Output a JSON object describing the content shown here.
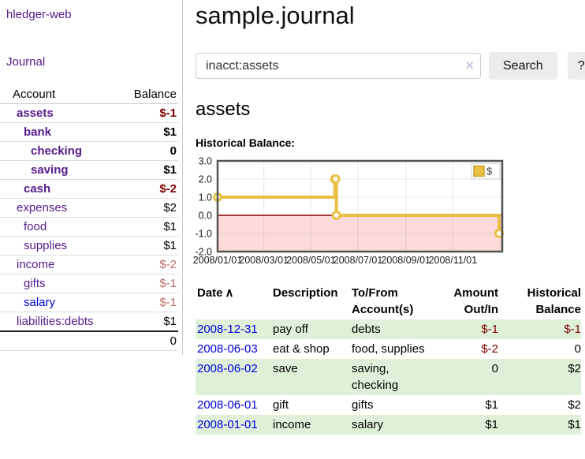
{
  "app": {
    "brand": "hledger-web"
  },
  "sidebar": {
    "journal_link": "Journal",
    "accounts_table": {
      "headers": [
        "Account",
        "Balance"
      ],
      "rows": [
        {
          "name": "assets",
          "balance": "$-1",
          "level": 1,
          "bold": true,
          "name_color": "purple",
          "balance_color": "darkred"
        },
        {
          "name": "bank",
          "balance": "$1",
          "level": 2,
          "bold": true,
          "name_color": "purple",
          "balance_color": "black"
        },
        {
          "name": "checking",
          "balance": "0",
          "level": 3,
          "bold": true,
          "name_color": "purple",
          "balance_color": "black"
        },
        {
          "name": "saving",
          "balance": "$1",
          "level": 3,
          "bold": true,
          "name_color": "purple",
          "balance_color": "black"
        },
        {
          "name": "cash",
          "balance": "$-2",
          "level": 2,
          "bold": true,
          "name_color": "purple",
          "balance_color": "darkred"
        },
        {
          "name": "expenses",
          "balance": "$2",
          "level": 1,
          "bold": false,
          "name_color": "purple",
          "balance_color": "black"
        },
        {
          "name": "food",
          "balance": "$1",
          "level": 2,
          "bold": false,
          "name_color": "purple",
          "balance_color": "black"
        },
        {
          "name": "supplies",
          "balance": "$1",
          "level": 2,
          "bold": false,
          "name_color": "purple",
          "balance_color": "black"
        },
        {
          "name": "income",
          "balance": "$-2",
          "level": 1,
          "bold": false,
          "name_color": "purple",
          "balance_color": "palered"
        },
        {
          "name": "gifts",
          "balance": "$-1",
          "level": 2,
          "bold": false,
          "name_color": "purple",
          "balance_color": "palered"
        },
        {
          "name": "salary",
          "balance": "$-1",
          "level": 2,
          "bold": false,
          "name_color": "blue",
          "balance_color": "palered"
        },
        {
          "name": "liabilities:debts",
          "balance": "$1",
          "level": 1,
          "bold": false,
          "name_color": "purple",
          "balance_color": "black"
        }
      ],
      "total": "0"
    }
  },
  "header": {
    "title": "sample.journal"
  },
  "search": {
    "value": "inacct:assets",
    "clear_icon": "×",
    "button_label": "Search",
    "help_label": "?"
  },
  "main": {
    "account_heading": "assets",
    "chart_label": "Historical Balance:"
  },
  "chart_data": {
    "type": "line",
    "step": true,
    "title": "Historical Balance",
    "series": [
      {
        "name": "$",
        "color": "#e9c044",
        "points": [
          {
            "date": "2008-01-01",
            "value": 1
          },
          {
            "date": "2008-06-01",
            "value": 2
          },
          {
            "date": "2008-06-02",
            "value": 2
          },
          {
            "date": "2008-06-03",
            "value": 0
          },
          {
            "date": "2008-12-31",
            "value": -1
          }
        ]
      }
    ],
    "x_ticks": [
      "2008/01/01",
      "2008/03/01",
      "2008/05/01",
      "2008/07/01",
      "2008/09/01",
      "2008/11/01"
    ],
    "y_ticks": [
      3.0,
      2.0,
      1.0,
      0.0,
      -1.0,
      -2.0
    ],
    "ylim": [
      -2,
      3
    ],
    "x_domain": [
      "2008-01-01",
      "2009-01-04"
    ],
    "negative_region_fill": "#fcdada",
    "zero_line_color": "#8b0000",
    "border_color": "#545454",
    "legend": {
      "label": "$",
      "position": "top-right"
    },
    "grid": true
  },
  "transactions": {
    "headers": [
      "Date",
      "Description",
      "To/From Account(s)",
      "Amount Out/In",
      "Historical Balance"
    ],
    "sort_icon": "∧",
    "rows": [
      {
        "date": "2008-12-31",
        "description": "pay off",
        "accounts": "debts",
        "amount": "$-1",
        "amount_negative": true,
        "balance": "$-1",
        "balance_negative": true,
        "shaded": true
      },
      {
        "date": "2008-06-03",
        "description": "eat & shop",
        "accounts": "food, supplies",
        "amount": "$-2",
        "amount_negative": true,
        "balance": "0",
        "balance_negative": false,
        "shaded": false
      },
      {
        "date": "2008-06-02",
        "description": "save",
        "accounts": "saving, checking",
        "amount": "0",
        "amount_negative": false,
        "balance": "$2",
        "balance_negative": false,
        "shaded": true
      },
      {
        "date": "2008-06-01",
        "description": "gift",
        "accounts": "gifts",
        "amount": "$1",
        "amount_negative": false,
        "balance": "$2",
        "balance_negative": false,
        "shaded": false
      },
      {
        "date": "2008-01-01",
        "description": "income",
        "accounts": "salary",
        "amount": "$1",
        "amount_negative": false,
        "balance": "$1",
        "balance_negative": false,
        "shaded": true
      }
    ]
  }
}
